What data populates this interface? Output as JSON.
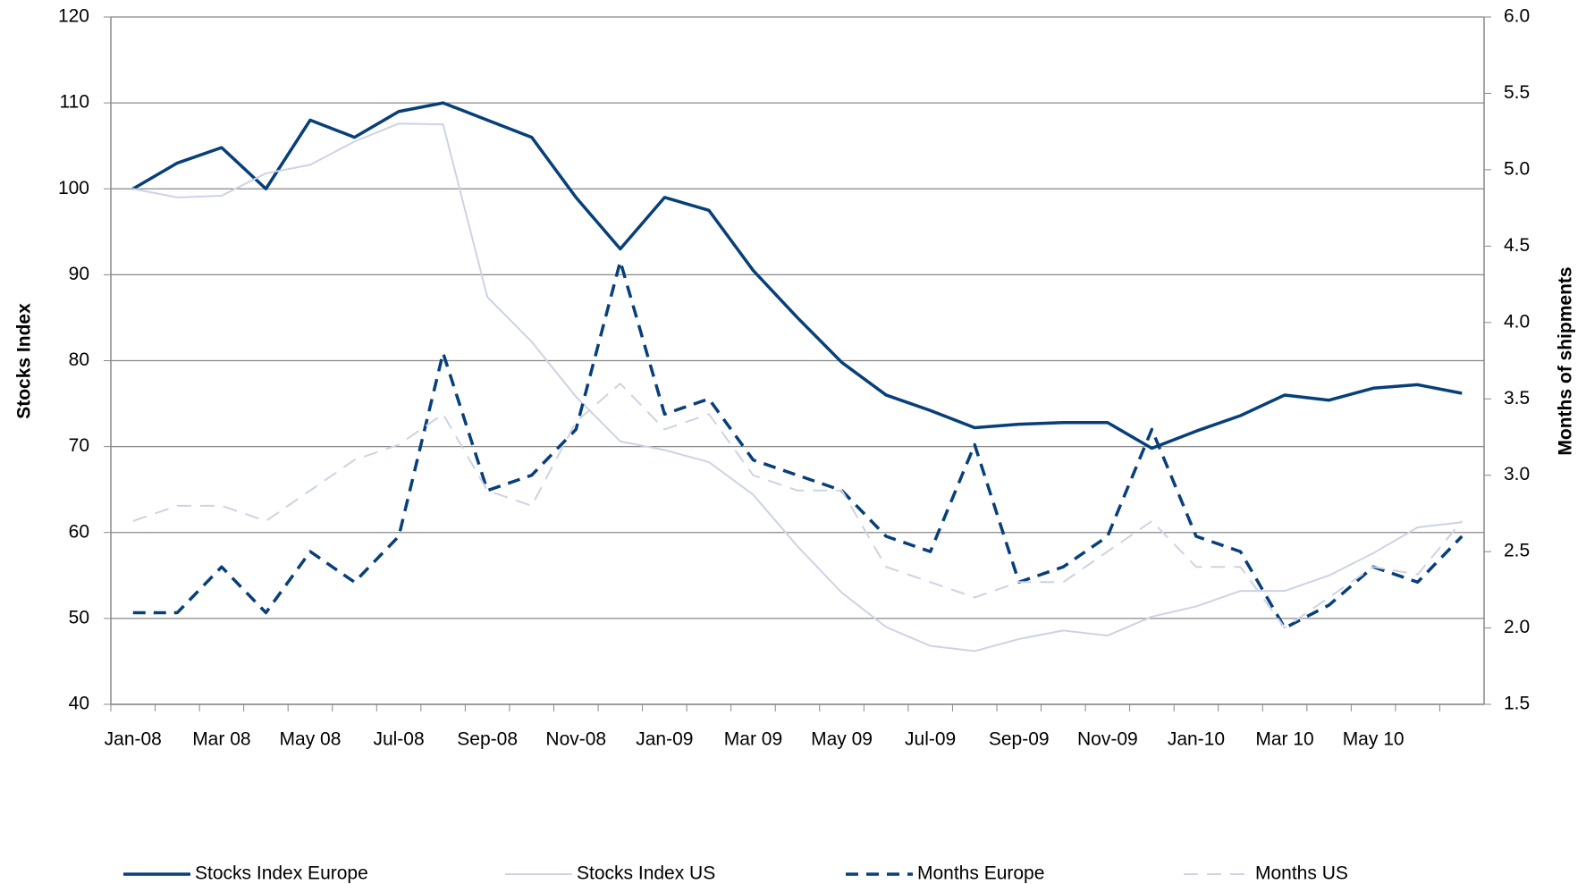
{
  "chart_data": {
    "type": "line",
    "y_label": "Stocks Index",
    "y2_label": "Months of shipments",
    "categories": [
      "Jan-08",
      null,
      "Mar 08",
      null,
      "May 08",
      null,
      "Jul-08",
      null,
      "Sep-08",
      null,
      "Nov-08",
      null,
      "Jan-09",
      null,
      "Mar 09",
      null,
      "May 09",
      null,
      "Jul-09",
      null,
      "Sep-09",
      null,
      "Nov-09",
      null,
      "Jan-10",
      null,
      "Mar 10",
      null,
      "May 10",
      null,
      null
    ],
    "ylim": [
      40,
      120
    ],
    "yticks": [
      40,
      50,
      60,
      70,
      80,
      90,
      100,
      110,
      120
    ],
    "y2lim": [
      1.5,
      6.0
    ],
    "y2ticks": [
      {
        "value": 1.5,
        "label": "1.5"
      },
      {
        "value": 2,
        "label": "2.0"
      },
      {
        "value": 2.5,
        "label": "2.5"
      },
      {
        "value": 3,
        "label": "3.0"
      },
      {
        "value": 3.5,
        "label": "3.5"
      },
      {
        "value": 4,
        "label": "4.0"
      },
      {
        "value": 4.5,
        "label": "4.5"
      },
      {
        "value": 5,
        "label": "5.0"
      },
      {
        "value": 5.5,
        "label": "5.5"
      },
      {
        "value": 6,
        "label": "6.0"
      }
    ],
    "grid": true,
    "legend": "bottom",
    "series": [
      {
        "name": "Stocks Index Europe",
        "color": "#073f7a",
        "dash": false,
        "width": 3.5,
        "values": [
          100,
          103,
          104.8,
          100,
          108,
          106,
          109,
          110,
          108,
          106,
          99,
          93,
          99,
          97.5,
          90.5,
          85,
          79.8,
          76,
          74.2,
          72.2,
          72.6,
          72.8,
          72.8,
          69.8,
          71.8,
          73.6,
          76,
          75.4,
          76.8,
          77.2,
          76.2
        ]
      },
      {
        "name": "Stocks Index US",
        "color": "#cdd3e4",
        "dash": false,
        "width": 2,
        "values": [
          100,
          99,
          99.2,
          101.8,
          102.8,
          105.5,
          107.6,
          107.5,
          87.4,
          82.2,
          75.8,
          70.6,
          69.6,
          68.2,
          64.4,
          58.4,
          53,
          49,
          46.8,
          46.2,
          47.6,
          48.6,
          48,
          50.2,
          51.4,
          53.2,
          53.2,
          55,
          57.6,
          60.6,
          61.2
        ]
      },
      {
        "name": "Months Europe",
        "color": "#073f7a",
        "dash": true,
        "width": 3.5,
        "axis": "y2",
        "values": [
          2.1,
          2.1,
          2.4,
          2.1,
          2.5,
          2.3,
          2.6,
          3.8,
          2.9,
          3.0,
          3.3,
          4.4,
          3.4,
          3.5,
          3.1,
          3.0,
          2.9,
          2.6,
          2.5,
          3.2,
          2.3,
          2.4,
          2.6,
          3.3,
          2.6,
          2.5,
          2.0,
          2.15,
          2.4,
          2.3,
          2.6
        ]
      },
      {
        "name": "Months US",
        "color": "#cdd3e4",
        "dash": true,
        "width": 2,
        "axis": "y2",
        "values": [
          2.7,
          2.8,
          2.8,
          2.7,
          2.9,
          3.1,
          3.2,
          3.4,
          2.9,
          2.8,
          3.35,
          3.6,
          3.3,
          3.4,
          3.0,
          2.9,
          2.9,
          2.4,
          2.3,
          2.2,
          2.3,
          2.3,
          2.5,
          2.7,
          2.4,
          2.4,
          2.0,
          2.2,
          2.4,
          2.35,
          2.7
        ]
      }
    ]
  }
}
